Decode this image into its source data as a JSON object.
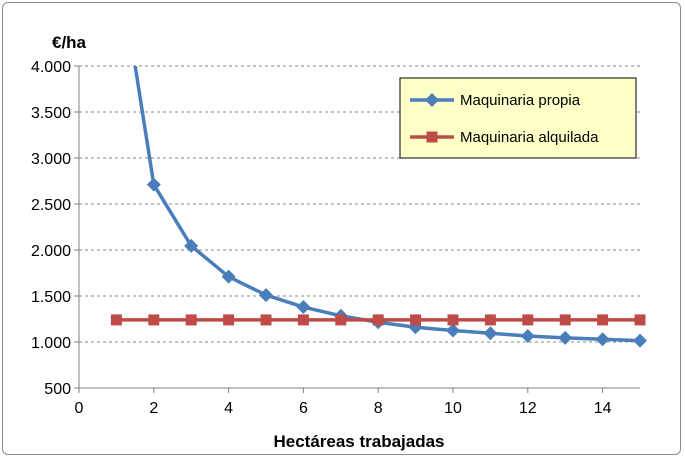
{
  "chart_data": {
    "type": "line",
    "title": "",
    "xlabel": "Hectáreas trabajadas",
    "ylabel": "€/ha",
    "xlim": [
      0,
      15
    ],
    "ylim": [
      500,
      4000
    ],
    "x_ticks": [
      0,
      2,
      4,
      6,
      8,
      10,
      12,
      14
    ],
    "y_ticks": [
      500,
      1000,
      1500,
      2000,
      2500,
      3000,
      3500,
      4000
    ],
    "x_tick_labels": [
      "0",
      "2",
      "4",
      "6",
      "8",
      "10",
      "12",
      "14"
    ],
    "y_tick_labels": [
      "500",
      "1.000",
      "1.500",
      "2.000",
      "2.500",
      "3.000",
      "3.500",
      "4.000"
    ],
    "grid": "horizontal-dashed",
    "legend_position": "top-right",
    "legend_background": "#ffffc8",
    "series": [
      {
        "name": "Maquinaria propia",
        "color": "#4a7ebb",
        "marker": "diamond",
        "x": [
          1,
          2,
          3,
          4,
          5,
          6,
          7,
          8,
          9,
          10,
          11,
          12,
          13,
          14,
          15
        ],
        "y": [
          5300,
          2710,
          2045,
          1710,
          1510,
          1380,
          1285,
          1215,
          1160,
          1125,
          1095,
          1065,
          1045,
          1030,
          1015
        ],
        "marker_start_index": 1
      },
      {
        "name": "Maquinaria alquilada",
        "color": "#be4b48",
        "marker": "square",
        "x": [
          1,
          2,
          3,
          4,
          5,
          6,
          7,
          8,
          9,
          10,
          11,
          12,
          13,
          14,
          15
        ],
        "y": [
          1240,
          1240,
          1240,
          1240,
          1240,
          1240,
          1240,
          1240,
          1240,
          1240,
          1240,
          1240,
          1240,
          1240,
          1240
        ]
      }
    ]
  }
}
